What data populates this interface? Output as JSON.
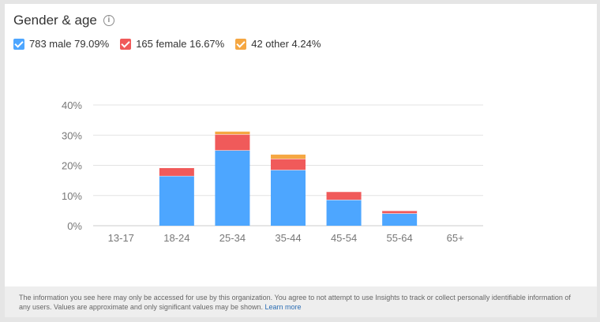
{
  "header": {
    "title": "Gender & age",
    "info_icon": "info-icon"
  },
  "legend": [
    {
      "label": "783 male 79.09%",
      "color": "#4da6ff"
    },
    {
      "label": "165 female 16.67%",
      "color": "#f05a5a"
    },
    {
      "label": "42 other 4.24%",
      "color": "#f5a742"
    }
  ],
  "chart_data": {
    "type": "bar",
    "stacked": true,
    "categories": [
      "13-17",
      "18-24",
      "25-34",
      "35-44",
      "45-54",
      "55-64",
      "65+"
    ],
    "series": [
      {
        "name": "male",
        "color": "#4da6ff",
        "values": [
          0,
          16.5,
          25.0,
          18.5,
          8.6,
          4.1,
          0
        ]
      },
      {
        "name": "female",
        "color": "#f05a5a",
        "values": [
          0,
          2.7,
          5.3,
          3.7,
          2.7,
          0.9,
          0
        ]
      },
      {
        "name": "other",
        "color": "#f5a742",
        "values": [
          0,
          0,
          1.0,
          1.5,
          0,
          0,
          0
        ]
      }
    ],
    "ylim": [
      0,
      40
    ],
    "yticks": [
      "0%",
      "10%",
      "20%",
      "30%",
      "40%"
    ],
    "grid": true
  },
  "footer": {
    "text": "The information you see here may only be accessed for use by this organization. You agree to not attempt to use Insights to track or collect personally identifiable information of any users. Values are approximate and only significant values may be shown.",
    "link": "Learn more"
  }
}
